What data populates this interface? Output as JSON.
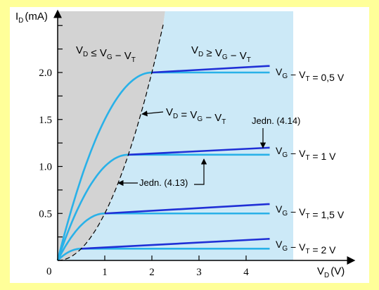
{
  "colors": {
    "page_background": "#ffff99",
    "plot_frame": "#ffffff",
    "triode_region": "#d3d3d3",
    "saturation_region": "#cce9f7",
    "ideal_curve": "#29b1e8",
    "modulated_curve": "#1f2fd6",
    "boundary": "#000000"
  },
  "chart_data": {
    "type": "line",
    "title": "",
    "xlabel": {
      "main": "V",
      "sub": "D",
      "unit": "(V)"
    },
    "ylabel": {
      "main": "I",
      "sub": "D",
      "unit": "(mA)"
    },
    "xlim": [
      0,
      5
    ],
    "ylim": [
      0,
      2.6
    ],
    "x_ticks": [
      "0",
      "1",
      "2",
      "3",
      "4"
    ],
    "y_ticks": [
      "0.5",
      "1.0",
      "1.5",
      "2.0"
    ],
    "y_tick_values": [
      0.5,
      1.0,
      1.5,
      2.0
    ],
    "origin_label": "0",
    "grid": false,
    "regions": [
      {
        "name": "triode",
        "label": "V_D ≤ V_G − V_T",
        "x_range": [
          0,
          "V_G − V_T"
        ]
      },
      {
        "name": "saturation",
        "label": "V_D ≥ V_G − V_T",
        "x_range": [
          "V_G − V_T",
          5
        ]
      }
    ],
    "boundary": {
      "label": "V_D = V_G − V_T",
      "style": "dashed",
      "equation": "I_D = 0.5·V_D²"
    },
    "series": [
      {
        "name": "V_G − V_T = 0,5 V",
        "vov": 0.5,
        "saturation_current": 0.125,
        "modulated_end_value": 0.23
      },
      {
        "name": "V_G − V_T = 1 V",
        "vov": 1.0,
        "saturation_current": 0.5,
        "modulated_end_value": 0.6
      },
      {
        "name": "V_G − V_T = 1,5 V",
        "vov": 1.5,
        "saturation_current": 1.125,
        "modulated_end_value": 1.2
      },
      {
        "name": "V_G − V_T = 2 V",
        "vov": 2.0,
        "saturation_current": 2.0,
        "modulated_end_value": 2.07
      }
    ],
    "curve_x_end": 4.5,
    "annotations": [
      {
        "id": "eq413",
        "text": "Jedn. (4.13)"
      },
      {
        "id": "eq414",
        "text": "Jedn. (4.14)"
      }
    ]
  }
}
